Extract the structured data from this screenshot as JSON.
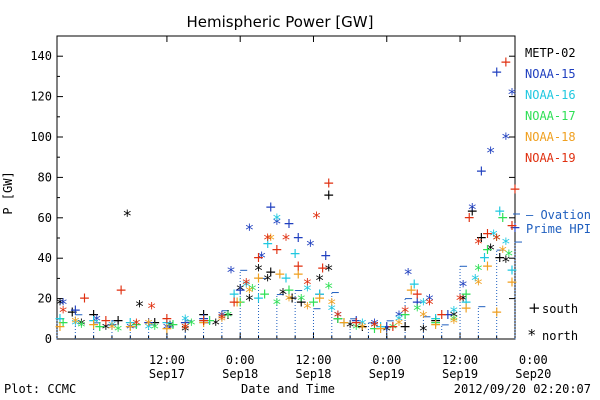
{
  "footer": {
    "plot_credit": "Plot: CCMC",
    "timestamp": "2012/09/20 02:20:07"
  },
  "chart_data": {
    "type": "scatter",
    "title": "Hemispheric Power [GW]",
    "xlabel": "Date and Time",
    "ylabel": "P [GW]",
    "xunit": "hours since 2012-09-16 18:00",
    "xlim": [
      0,
      75
    ],
    "ylim": [
      0,
      150
    ],
    "yticks": [
      0,
      20,
      40,
      60,
      80,
      100,
      120,
      140
    ],
    "xticks": [
      {
        "x": 18,
        "line1": "12:00",
        "line2": "Sep17"
      },
      {
        "x": 30,
        "line1": "0:00",
        "line2": "Sep18"
      },
      {
        "x": 42,
        "line1": "12:00",
        "line2": "Sep18"
      },
      {
        "x": 54,
        "line1": "0:00",
        "line2": "Sep19"
      },
      {
        "x": 66,
        "line1": "12:00",
        "line2": "Sep19"
      },
      {
        "x": 78,
        "line1": "0:00",
        "line2": "Sep20"
      }
    ],
    "marker_legend": [
      {
        "symbol": "+",
        "label": "south"
      },
      {
        "symbol": "*",
        "label": "north"
      }
    ],
    "ovation": {
      "name": "— Ovation Prime HPI",
      "color": "#1f5fbf",
      "x": [
        0,
        3,
        6,
        9,
        12,
        15,
        18,
        21,
        24,
        27,
        30,
        33,
        36,
        39,
        42,
        45,
        48,
        51,
        54,
        57,
        60,
        63,
        66,
        69,
        72,
        75
      ],
      "values": [
        10,
        12,
        8,
        9,
        6,
        7,
        6,
        9,
        8,
        14,
        34,
        30,
        22,
        24,
        15,
        23,
        10,
        8,
        9,
        20,
        11,
        7,
        36,
        16,
        44,
        48
      ]
    },
    "series": [
      {
        "name": "METP-02",
        "color": "#000000",
        "values": [
          [
            0.5,
            18,
            "*"
          ],
          [
            2.5,
            13,
            "+"
          ],
          [
            4,
            8,
            "*"
          ],
          [
            6,
            12,
            "+"
          ],
          [
            8,
            6,
            "*"
          ],
          [
            10,
            9,
            "+"
          ],
          [
            11.5,
            62,
            "*"
          ],
          [
            13.5,
            17,
            "*"
          ],
          [
            16,
            8,
            "+"
          ],
          [
            18.5,
            7,
            "*"
          ],
          [
            21,
            5,
            "*"
          ],
          [
            24,
            12,
            "+"
          ],
          [
            26,
            8,
            "*"
          ],
          [
            28,
            12,
            "+"
          ],
          [
            30,
            25,
            "*"
          ],
          [
            31.5,
            20,
            "*"
          ],
          [
            33,
            35,
            "*"
          ],
          [
            34.5,
            30,
            "*"
          ],
          [
            35,
            33,
            "+"
          ],
          [
            37,
            23,
            "*"
          ],
          [
            38.5,
            20,
            "+"
          ],
          [
            40,
            18,
            "+"
          ],
          [
            43,
            30,
            "*"
          ],
          [
            44.5,
            71,
            "+"
          ],
          [
            44.5,
            35,
            "*"
          ],
          [
            46,
            10,
            "+"
          ],
          [
            48,
            7,
            "*"
          ],
          [
            50,
            6,
            "+"
          ],
          [
            52,
            7,
            "*"
          ],
          [
            54,
            5,
            "*"
          ],
          [
            57,
            6,
            "+"
          ],
          [
            60,
            5,
            "*"
          ],
          [
            62,
            9,
            "+"
          ],
          [
            65,
            12,
            "*"
          ],
          [
            66.5,
            20,
            "*"
          ],
          [
            68,
            63,
            "+"
          ],
          [
            69.5,
            50,
            "+"
          ],
          [
            71,
            45,
            "*"
          ],
          [
            72.5,
            40,
            "+"
          ],
          [
            73.5,
            39,
            "*"
          ]
        ]
      },
      {
        "name": "NOAA-15",
        "color": "#1f3fbf",
        "values": [
          [
            1,
            18,
            "*"
          ],
          [
            3,
            14,
            "+"
          ],
          [
            6.5,
            10,
            "*"
          ],
          [
            9,
            7,
            "+"
          ],
          [
            12,
            6,
            "*"
          ],
          [
            15,
            8,
            "+"
          ],
          [
            18,
            6,
            "*"
          ],
          [
            21,
            8,
            "+"
          ],
          [
            24,
            10,
            "+"
          ],
          [
            27,
            12,
            "*"
          ],
          [
            28.5,
            34,
            "*"
          ],
          [
            30,
            24,
            "+"
          ],
          [
            31.5,
            55,
            "*"
          ],
          [
            33.5,
            41,
            "*"
          ],
          [
            35,
            65,
            "+"
          ],
          [
            36,
            58,
            "*"
          ],
          [
            38,
            57,
            "+"
          ],
          [
            39.5,
            50,
            "+"
          ],
          [
            41.5,
            47,
            "*"
          ],
          [
            43,
            22,
            "+"
          ],
          [
            44,
            41,
            "+"
          ],
          [
            46,
            12,
            "*"
          ],
          [
            49,
            9,
            "+"
          ],
          [
            52,
            8,
            "*"
          ],
          [
            54,
            6,
            "+"
          ],
          [
            56,
            12,
            "*"
          ],
          [
            57.5,
            33,
            "*"
          ],
          [
            59,
            18,
            "+"
          ],
          [
            61,
            20,
            "*"
          ],
          [
            64,
            12,
            "+"
          ],
          [
            66.5,
            27,
            "*"
          ],
          [
            68,
            65,
            "*"
          ],
          [
            69.5,
            83,
            "+"
          ],
          [
            71,
            93,
            "*"
          ],
          [
            72,
            132,
            "+"
          ],
          [
            73.5,
            100,
            "*"
          ],
          [
            74.5,
            122,
            "*"
          ],
          [
            75,
            55,
            "+"
          ]
        ]
      },
      {
        "name": "NOAA-16",
        "color": "#20c8e0",
        "values": [
          [
            0.5,
            10,
            "+"
          ],
          [
            3,
            8,
            "*"
          ],
          [
            6,
            9,
            "+"
          ],
          [
            9,
            7,
            "*"
          ],
          [
            12,
            8,
            "+"
          ],
          [
            15,
            6,
            "*"
          ],
          [
            18,
            8,
            "+"
          ],
          [
            21,
            10,
            "*"
          ],
          [
            24,
            9,
            "+"
          ],
          [
            27,
            11,
            "*"
          ],
          [
            29,
            22,
            "+"
          ],
          [
            31,
            27,
            "*"
          ],
          [
            33,
            20,
            "+"
          ],
          [
            34.5,
            47,
            "+"
          ],
          [
            36,
            60,
            "*"
          ],
          [
            37.5,
            30,
            "+"
          ],
          [
            39,
            42,
            "+"
          ],
          [
            41,
            25,
            "*"
          ],
          [
            43,
            22,
            "+"
          ],
          [
            45,
            15,
            "*"
          ],
          [
            47,
            8,
            "+"
          ],
          [
            50,
            8,
            "*"
          ],
          [
            53,
            6,
            "+"
          ],
          [
            56,
            10,
            "*"
          ],
          [
            58.5,
            27,
            "+"
          ],
          [
            60,
            18,
            "*"
          ],
          [
            62,
            10,
            "+"
          ],
          [
            65,
            14,
            "*"
          ],
          [
            67,
            18,
            "+"
          ],
          [
            68.5,
            30,
            "*"
          ],
          [
            70,
            40,
            "+"
          ],
          [
            71.5,
            52,
            "*"
          ],
          [
            72.5,
            63,
            "+"
          ],
          [
            73.5,
            48,
            "*"
          ],
          [
            74.5,
            34,
            "+"
          ]
        ]
      },
      {
        "name": "NOAA-17",
        "color": "#2ee055",
        "values": [
          [
            1,
            8,
            "+"
          ],
          [
            4,
            7,
            "*"
          ],
          [
            7,
            6,
            "+"
          ],
          [
            10,
            5,
            "*"
          ],
          [
            13,
            7,
            "+"
          ],
          [
            16,
            6,
            "*"
          ],
          [
            19,
            7,
            "+"
          ],
          [
            22,
            8,
            "*"
          ],
          [
            25,
            9,
            "+"
          ],
          [
            28,
            12,
            "*"
          ],
          [
            30,
            18,
            "+"
          ],
          [
            32,
            25,
            "*"
          ],
          [
            34,
            22,
            "+"
          ],
          [
            36,
            18,
            "*"
          ],
          [
            38,
            24,
            "+"
          ],
          [
            40,
            20,
            "*"
          ],
          [
            42,
            18,
            "+"
          ],
          [
            44.5,
            26,
            "*"
          ],
          [
            46,
            10,
            "+"
          ],
          [
            49,
            6,
            "*"
          ],
          [
            52,
            5,
            "+"
          ],
          [
            55,
            6,
            "*"
          ],
          [
            57,
            12,
            "+"
          ],
          [
            59,
            15,
            "*"
          ],
          [
            62,
            8,
            "+"
          ],
          [
            65,
            10,
            "*"
          ],
          [
            67,
            22,
            "+"
          ],
          [
            69,
            35,
            "*"
          ],
          [
            70.5,
            44,
            "+"
          ],
          [
            72,
            50,
            "*"
          ],
          [
            73,
            60,
            "+"
          ],
          [
            74,
            42,
            "*"
          ]
        ]
      },
      {
        "name": "NOAA-18",
        "color": "#f0a020",
        "values": [
          [
            0.5,
            6,
            "+"
          ],
          [
            3,
            9,
            "*"
          ],
          [
            6,
            7,
            "+"
          ],
          [
            9,
            6,
            "*"
          ],
          [
            12,
            6,
            "+"
          ],
          [
            15,
            8,
            "*"
          ],
          [
            18,
            5,
            "+"
          ],
          [
            21,
            6,
            "*"
          ],
          [
            24,
            8,
            "+"
          ],
          [
            27,
            10,
            "*"
          ],
          [
            29.5,
            18,
            "+"
          ],
          [
            31.5,
            24,
            "*"
          ],
          [
            33,
            30,
            "+"
          ],
          [
            35,
            50,
            "*"
          ],
          [
            36.5,
            32,
            "+"
          ],
          [
            38,
            20,
            "*"
          ],
          [
            39.5,
            32,
            "+"
          ],
          [
            41,
            16,
            "*"
          ],
          [
            43,
            20,
            "+"
          ],
          [
            45,
            18,
            "*"
          ],
          [
            47,
            8,
            "+"
          ],
          [
            50,
            6,
            "*"
          ],
          [
            53,
            5,
            "+"
          ],
          [
            56,
            8,
            "*"
          ],
          [
            58,
            24,
            "+"
          ],
          [
            60,
            12,
            "*"
          ],
          [
            62,
            7,
            "+"
          ],
          [
            65,
            9,
            "*"
          ],
          [
            67,
            15,
            "+"
          ],
          [
            69,
            28,
            "*"
          ],
          [
            70.5,
            36,
            "+"
          ],
          [
            72,
            13,
            "+"
          ],
          [
            73,
            44,
            "*"
          ],
          [
            74.5,
            28,
            "+"
          ]
        ]
      },
      {
        "name": "NOAA-19",
        "color": "#e03010",
        "values": [
          [
            1,
            14,
            "*"
          ],
          [
            4.5,
            20,
            "+"
          ],
          [
            8,
            9,
            "+"
          ],
          [
            10.5,
            24,
            "+"
          ],
          [
            13,
            8,
            "*"
          ],
          [
            15.5,
            16,
            "*"
          ],
          [
            18,
            10,
            "+"
          ],
          [
            21,
            6,
            "*"
          ],
          [
            24,
            9,
            "+"
          ],
          [
            27,
            11,
            "*"
          ],
          [
            29,
            18,
            "+"
          ],
          [
            31,
            28,
            "*"
          ],
          [
            33,
            40,
            "+"
          ],
          [
            34.5,
            50,
            "*"
          ],
          [
            36,
            44,
            "+"
          ],
          [
            37.5,
            50,
            "*"
          ],
          [
            39.5,
            36,
            "+"
          ],
          [
            41,
            28,
            "*"
          ],
          [
            42.5,
            61,
            "*"
          ],
          [
            43.5,
            35,
            "+"
          ],
          [
            44.5,
            77,
            "+"
          ],
          [
            46,
            12,
            "*"
          ],
          [
            49,
            8,
            "+"
          ],
          [
            52,
            7,
            "*"
          ],
          [
            55,
            6,
            "+"
          ],
          [
            57,
            14,
            "*"
          ],
          [
            59,
            22,
            "+"
          ],
          [
            61,
            18,
            "*"
          ],
          [
            63,
            12,
            "+"
          ],
          [
            66,
            20,
            "*"
          ],
          [
            67.5,
            60,
            "+"
          ],
          [
            69,
            48,
            "*"
          ],
          [
            70.5,
            52,
            "+"
          ],
          [
            72,
            50,
            "*"
          ],
          [
            73.5,
            137,
            "+"
          ],
          [
            74.5,
            56,
            "+"
          ],
          [
            75,
            74,
            "+"
          ]
        ]
      }
    ]
  }
}
